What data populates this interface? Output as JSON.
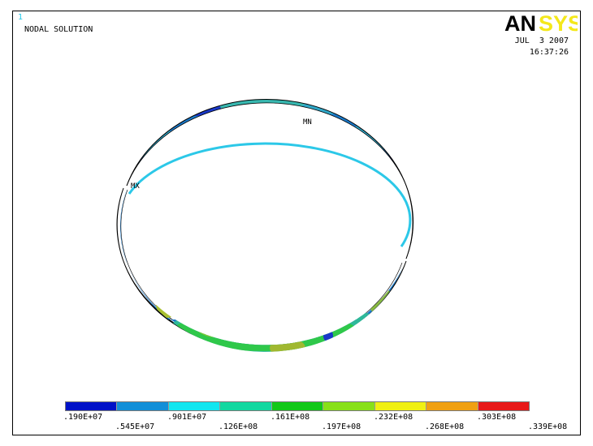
{
  "window_number": "1",
  "solution_title": "NODAL SOLUTION",
  "logo_text_dark": "AN",
  "logo_text_light": "SYS",
  "date": "JUL  3 2007",
  "time": "16:37:26",
  "markers": {
    "min": "MN",
    "max": "MX"
  },
  "legend": {
    "colors": [
      "#0012c8",
      "#128fd8",
      "#12e6f0",
      "#12d8a0",
      "#12c818",
      "#88e018",
      "#f0f012",
      "#f0a012",
      "#e81818"
    ],
    "labels_upper": [
      ".190E+07",
      ".901E+07",
      ".161E+08",
      ".232E+08",
      ".303E+08"
    ],
    "labels_lower": [
      ".545E+07",
      ".126E+08",
      ".197E+08",
      ".268E+08",
      ".339E+08"
    ]
  }
}
